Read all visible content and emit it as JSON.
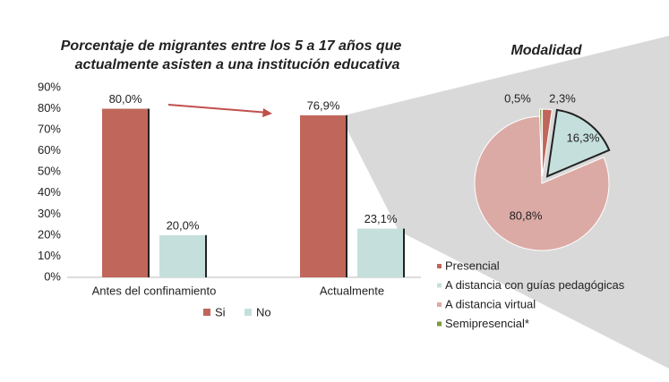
{
  "chart_data": [
    {
      "type": "bar",
      "title": [
        "Porcentaje de migrantes entre los 5 a 17 años que",
        "actualmente asisten a una institución educativa"
      ],
      "categories": [
        "Antes del confinamiento",
        "Actualmente"
      ],
      "series": [
        {
          "name": "Si",
          "color": "#c0665a",
          "values": [
            80,
            76.9
          ],
          "value_labels": [
            "80,0%",
            "76,9%"
          ]
        },
        {
          "name": "No",
          "color": "#c5e0dc",
          "values": [
            20,
            23.1
          ],
          "value_labels": [
            "20,0%",
            "23,1%"
          ]
        }
      ],
      "ylim": [
        0,
        90
      ],
      "yticks": [
        {
          "value": 0,
          "label": "0%"
        },
        {
          "value": 10,
          "label": "10%"
        },
        {
          "value": 20,
          "label": "20%"
        },
        {
          "value": 30,
          "label": "30%"
        },
        {
          "value": 40,
          "label": "40%"
        },
        {
          "value": 50,
          "label": "50%"
        },
        {
          "value": 60,
          "label": "60%"
        },
        {
          "value": 70,
          "label": "70%"
        },
        {
          "value": 80,
          "label": "80%"
        },
        {
          "value": 90,
          "label": "90%"
        }
      ]
    },
    {
      "type": "pie",
      "title": "Modalidad",
      "categories": [
        "Presencial",
        "A distancia con guías pedagógicas",
        "A distancia virtual",
        "Semipresencial*"
      ],
      "values": [
        2.3,
        16.3,
        80.8,
        0.5
      ],
      "value_labels": [
        "2,3%",
        "16,3%",
        "80,8%",
        "0,5%"
      ],
      "colors": [
        "#c0665a",
        "#c5e0dc",
        "#dcaaa5",
        "#7a9a3e"
      ]
    }
  ]
}
